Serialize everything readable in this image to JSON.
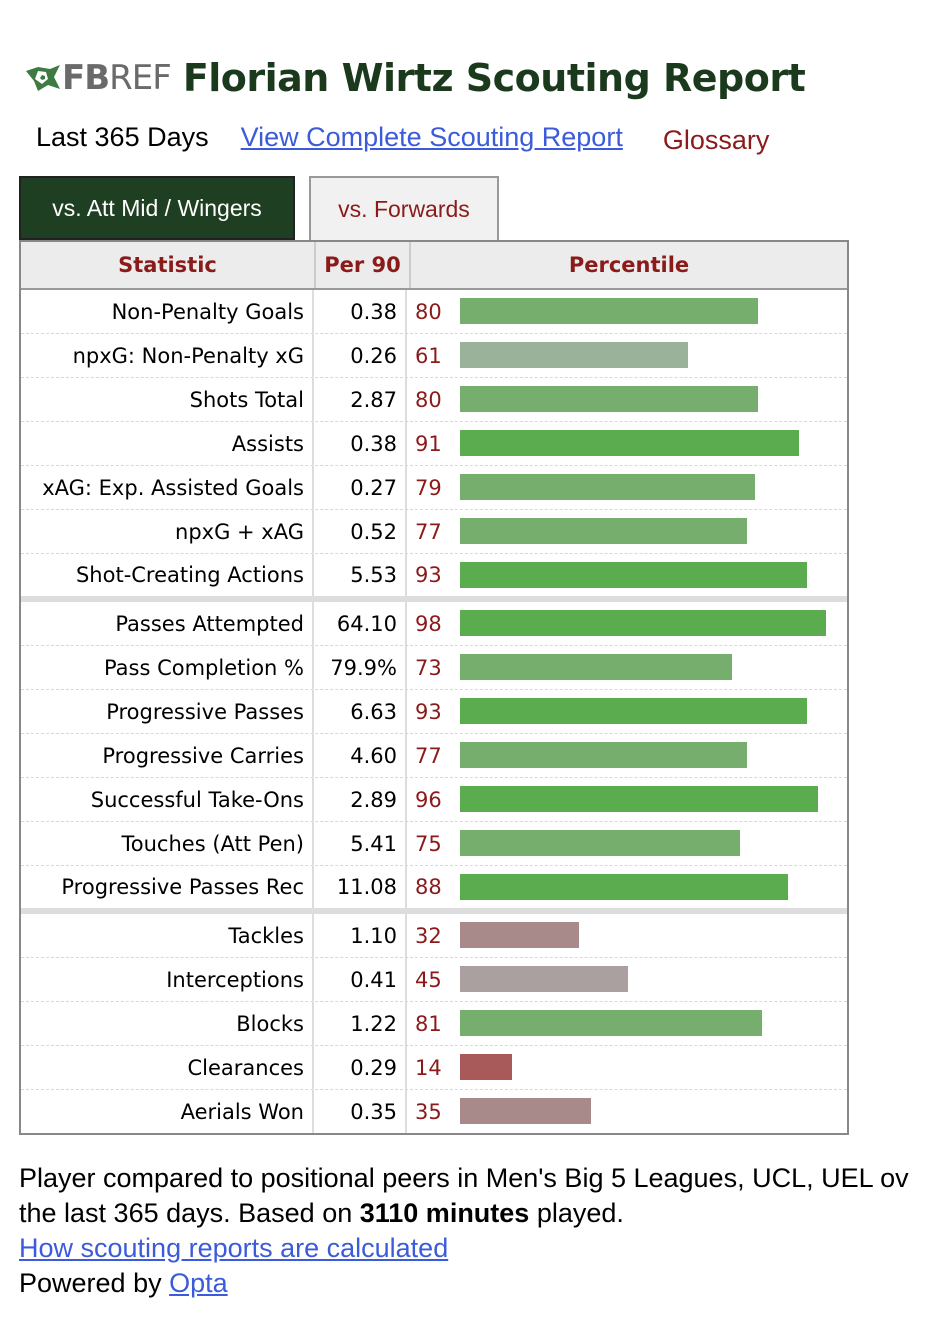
{
  "header": {
    "logo_fb": "FB",
    "logo_ref": "REF",
    "title": "Florian Wirtz Scouting Report"
  },
  "subline": {
    "period": "Last 365 Days",
    "complete_link": "View Complete Scouting Report",
    "glossary": "Glossary"
  },
  "tabs": [
    {
      "label": "vs. Att Mid / Wingers",
      "active": true
    },
    {
      "label": "vs. Forwards",
      "active": false
    }
  ],
  "table": {
    "headers": {
      "statistic": "Statistic",
      "per90": "Per 90",
      "percentile": "Percentile"
    },
    "rows": [
      {
        "stat": "Non-Penalty Goals",
        "per90": "0.38",
        "percentile": 80,
        "color": "#76ae6e"
      },
      {
        "stat": "npxG: Non-Penalty xG",
        "per90": "0.26",
        "percentile": 61,
        "color": "#9bb29a"
      },
      {
        "stat": "Shots Total",
        "per90": "2.87",
        "percentile": 80,
        "color": "#76ae6e"
      },
      {
        "stat": "Assists",
        "per90": "0.38",
        "percentile": 91,
        "color": "#5aac4f"
      },
      {
        "stat": "xAG: Exp. Assisted Goals",
        "per90": "0.27",
        "percentile": 79,
        "color": "#76ae6e"
      },
      {
        "stat": "npxG + xAG",
        "per90": "0.52",
        "percentile": 77,
        "color": "#76ae6e"
      },
      {
        "stat": "Shot-Creating Actions",
        "per90": "5.53",
        "percentile": 93,
        "color": "#5aac4f",
        "separator": true
      },
      {
        "stat": "Passes Attempted",
        "per90": "64.10",
        "percentile": 98,
        "color": "#5aac4f"
      },
      {
        "stat": "Pass Completion %",
        "per90": "79.9%",
        "percentile": 73,
        "color": "#76ae6e"
      },
      {
        "stat": "Progressive Passes",
        "per90": "6.63",
        "percentile": 93,
        "color": "#5aac4f"
      },
      {
        "stat": "Progressive Carries",
        "per90": "4.60",
        "percentile": 77,
        "color": "#76ae6e"
      },
      {
        "stat": "Successful Take-Ons",
        "per90": "2.89",
        "percentile": 96,
        "color": "#5aac4f"
      },
      {
        "stat": "Touches (Att Pen)",
        "per90": "5.41",
        "percentile": 75,
        "color": "#76ae6e"
      },
      {
        "stat": "Progressive Passes Rec",
        "per90": "11.08",
        "percentile": 88,
        "color": "#5aac4f",
        "separator": true
      },
      {
        "stat": "Tackles",
        "per90": "1.10",
        "percentile": 32,
        "color": "#a98a8a"
      },
      {
        "stat": "Interceptions",
        "per90": "0.41",
        "percentile": 45,
        "color": "#aaa0a0"
      },
      {
        "stat": "Blocks",
        "per90": "1.22",
        "percentile": 81,
        "color": "#76ae6e"
      },
      {
        "stat": "Clearances",
        "per90": "0.29",
        "percentile": 14,
        "color": "#a85a5a"
      },
      {
        "stat": "Aerials Won",
        "per90": "0.35",
        "percentile": 35,
        "color": "#a98a8a"
      }
    ]
  },
  "footer": {
    "line1": "Player compared to positional peers in Men's Big 5 Leagues, UCL, UEL ov",
    "line2_pre": "the last 365 days. Based on ",
    "line2_bold": "3110 minutes",
    "line2_post": " played.",
    "how_link": "How scouting reports are calculated",
    "powered_pre": "Powered by ",
    "powered_link": "Opta"
  }
}
